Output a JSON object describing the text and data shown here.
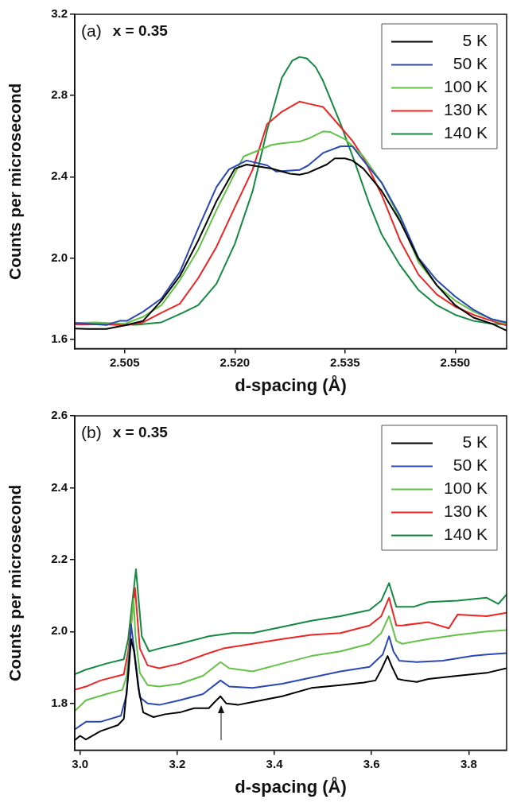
{
  "chart_data": [
    {
      "type": "line",
      "annotations": [
        "(a)",
        "x = 0.35"
      ],
      "xlabel": "d-spacing (Å)",
      "ylabel": "Counts per microsecond",
      "xlim": [
        2.4982,
        2.557
      ],
      "ylim": [
        1.553,
        3.2
      ],
      "xticks": [
        {
          "value": 2.505,
          "label": "2.505"
        },
        {
          "value": 2.52,
          "label": "2.520"
        },
        {
          "value": 2.535,
          "label": "2.535"
        },
        {
          "value": 2.55,
          "label": "2.550"
        }
      ],
      "yticks": [
        1.6,
        {
          "value": 2,
          "label": "2.0"
        },
        2.4,
        2.8,
        3.2
      ],
      "legend": "top right",
      "series": [
        {
          "name": "5 K",
          "color": "#000000",
          "x": [
            2.4982,
            2.5,
            2.5025,
            2.505,
            2.5075,
            2.51,
            2.5125,
            2.515,
            2.5175,
            2.52,
            2.5216,
            2.525,
            2.5275,
            2.5288,
            2.53,
            2.5325,
            2.5336,
            2.535,
            2.536,
            2.5375,
            2.54,
            2.5425,
            2.545,
            2.5475,
            2.55,
            2.5525,
            2.555,
            2.557
          ],
          "values": [
            1.652,
            1.65,
            1.65,
            1.668,
            1.69,
            1.79,
            1.91,
            2.085,
            2.28,
            2.44,
            2.46,
            2.44,
            2.415,
            2.41,
            2.42,
            2.46,
            2.49,
            2.49,
            2.48,
            2.44,
            2.33,
            2.18,
            1.995,
            1.865,
            1.767,
            1.706,
            1.676,
            1.642
          ]
        },
        {
          "name": "50 K",
          "color": "#2a48b4",
          "x": [
            2.4982,
            2.5025,
            2.5043,
            2.5053,
            2.5075,
            2.51,
            2.5125,
            2.515,
            2.5175,
            2.5192,
            2.5216,
            2.5244,
            2.5256,
            2.5288,
            2.53,
            2.532,
            2.5344,
            2.536,
            2.5375,
            2.54,
            2.5425,
            2.545,
            2.5475,
            2.55,
            2.5525,
            2.555,
            2.557
          ],
          "values": [
            1.68,
            1.67,
            1.69,
            1.69,
            1.735,
            1.8,
            1.93,
            2.145,
            2.35,
            2.436,
            2.48,
            2.456,
            2.426,
            2.433,
            2.456,
            2.517,
            2.55,
            2.55,
            2.48,
            2.37,
            2.206,
            2.0,
            1.89,
            1.81,
            1.745,
            1.698,
            1.683
          ]
        },
        {
          "name": "100 K",
          "color": "#62c245",
          "x": [
            2.4982,
            2.501,
            2.505,
            2.5075,
            2.51,
            2.5125,
            2.515,
            2.5175,
            2.52,
            2.5212,
            2.525,
            2.5264,
            2.5288,
            2.53,
            2.532,
            2.533,
            2.535,
            2.5375,
            2.54,
            2.5425,
            2.545,
            2.5475,
            2.55,
            2.5525,
            2.555,
            2.557
          ],
          "values": [
            1.68,
            1.683,
            1.676,
            1.71,
            1.767,
            1.89,
            2.04,
            2.236,
            2.418,
            2.5,
            2.557,
            2.565,
            2.573,
            2.588,
            2.623,
            2.62,
            2.585,
            2.5,
            2.37,
            2.19,
            1.98,
            1.865,
            1.79,
            1.736,
            1.698,
            1.676
          ]
        },
        {
          "name": "130 K",
          "color": "#ee2424",
          "x": [
            2.4982,
            2.5025,
            2.505,
            2.5075,
            2.51,
            2.5125,
            2.515,
            2.5175,
            2.52,
            2.5224,
            2.5244,
            2.5264,
            2.5288,
            2.53,
            2.532,
            2.5344,
            2.536,
            2.5375,
            2.54,
            2.5425,
            2.545,
            2.5475,
            2.55,
            2.5525,
            2.555,
            2.557
          ],
          "values": [
            1.673,
            1.673,
            1.668,
            1.683,
            1.73,
            1.774,
            1.9,
            2.055,
            2.25,
            2.433,
            2.66,
            2.72,
            2.77,
            2.76,
            2.744,
            2.645,
            2.577,
            2.494,
            2.31,
            2.085,
            1.918,
            1.82,
            1.76,
            1.72,
            1.69,
            1.668
          ]
        },
        {
          "name": "140 K",
          "color": "#138a40",
          "x": [
            2.4982,
            2.5025,
            2.5065,
            2.51,
            2.5129,
            2.515,
            2.5175,
            2.52,
            2.5224,
            2.5244,
            2.5264,
            2.5278,
            2.5288,
            2.5298,
            2.531,
            2.532,
            2.5344,
            2.5364,
            2.5383,
            2.54,
            2.5425,
            2.545,
            2.5475,
            2.55,
            2.5525,
            2.555,
            2.557
          ],
          "values": [
            1.68,
            1.676,
            1.671,
            1.683,
            1.73,
            1.767,
            1.873,
            2.07,
            2.327,
            2.63,
            2.888,
            2.971,
            2.99,
            2.983,
            2.94,
            2.873,
            2.66,
            2.464,
            2.267,
            2.115,
            1.964,
            1.842,
            1.767,
            1.72,
            1.69,
            1.676,
            1.673
          ]
        }
      ]
    },
    {
      "type": "line",
      "annotations": [
        "(b)",
        "x = 0.35"
      ],
      "xlabel": "d-spacing (Å)",
      "ylabel": "Counts per microsecond",
      "xlim": [
        2.989,
        3.878
      ],
      "ylim": [
        1.67,
        2.6
      ],
      "xticks": [
        {
          "value": 3,
          "label": "3.0"
        },
        3.2,
        3.4,
        3.6,
        3.8
      ],
      "yticks": [
        1.8,
        {
          "value": 2,
          "label": "2.0"
        },
        2.2,
        2.4,
        2.6
      ],
      "legend": "top right",
      "series": [
        {
          "name": "5 K",
          "color": "#000000",
          "x": [
            2.989,
            3.0,
            3.012,
            3.042,
            3.078,
            3.09,
            3.099,
            3.105,
            3.111,
            3.12,
            3.13,
            3.151,
            3.175,
            3.205,
            3.235,
            3.265,
            3.277,
            3.289,
            3.301,
            3.325,
            3.355,
            3.416,
            3.476,
            3.536,
            3.584,
            3.608,
            3.62,
            3.633,
            3.642,
            3.654,
            3.669,
            3.693,
            3.717,
            3.777,
            3.837,
            3.878
          ],
          "values": [
            1.698,
            1.71,
            1.7,
            1.723,
            1.74,
            1.757,
            1.877,
            1.979,
            1.945,
            1.843,
            1.775,
            1.762,
            1.77,
            1.775,
            1.787,
            1.787,
            1.804,
            1.82,
            1.8,
            1.796,
            1.804,
            1.82,
            1.843,
            1.851,
            1.858,
            1.864,
            1.894,
            1.932,
            1.902,
            1.868,
            1.864,
            1.86,
            1.868,
            1.877,
            1.885,
            1.898
          ]
        },
        {
          "name": "50 K",
          "color": "#2a48b4",
          "x": [
            2.989,
            3.012,
            3.042,
            3.084,
            3.096,
            3.105,
            3.114,
            3.123,
            3.139,
            3.163,
            3.205,
            3.253,
            3.289,
            3.307,
            3.355,
            3.416,
            3.476,
            3.536,
            3.596,
            3.623,
            3.636,
            3.645,
            3.657,
            3.693,
            3.747,
            3.807,
            3.837,
            3.878
          ],
          "values": [
            1.728,
            1.749,
            1.749,
            1.766,
            1.826,
            2.02,
            1.92,
            1.817,
            1.8,
            1.796,
            1.809,
            1.826,
            1.864,
            1.847,
            1.843,
            1.855,
            1.872,
            1.889,
            1.902,
            1.936,
            1.987,
            1.945,
            1.919,
            1.915,
            1.919,
            1.932,
            1.936,
            1.94
          ]
        },
        {
          "name": "100 K",
          "color": "#62c245",
          "x": [
            2.989,
            3.012,
            3.054,
            3.087,
            3.096,
            3.11,
            3.114,
            3.123,
            3.139,
            3.163,
            3.205,
            3.253,
            3.289,
            3.307,
            3.355,
            3.416,
            3.476,
            3.536,
            3.596,
            3.62,
            3.636,
            3.651,
            3.663,
            3.717,
            3.777,
            3.837,
            3.878
          ],
          "values": [
            1.779,
            1.809,
            1.826,
            1.838,
            1.877,
            2.092,
            1.987,
            1.885,
            1.851,
            1.847,
            1.855,
            1.877,
            1.915,
            1.898,
            1.889,
            1.911,
            1.932,
            1.945,
            1.966,
            1.996,
            2.043,
            1.974,
            1.966,
            1.979,
            1.991,
            2.0,
            2.004
          ]
        },
        {
          "name": "130 K",
          "color": "#ee2424",
          "x": [
            2.989,
            3.012,
            3.042,
            3.09,
            3.099,
            3.113,
            3.123,
            3.139,
            3.163,
            3.205,
            3.265,
            3.295,
            3.355,
            3.416,
            3.476,
            3.536,
            3.596,
            3.62,
            3.636,
            3.651,
            3.663,
            3.717,
            3.759,
            3.777,
            3.837,
            3.878
          ],
          "values": [
            1.838,
            1.847,
            1.864,
            1.881,
            1.945,
            2.122,
            1.953,
            1.906,
            1.898,
            1.911,
            1.94,
            1.953,
            1.966,
            1.979,
            1.991,
            1.996,
            2.017,
            2.043,
            2.094,
            2.017,
            2.017,
            2.026,
            2.009,
            2.047,
            2.043,
            2.052
          ]
        },
        {
          "name": "140 K",
          "color": "#138a40",
          "x": [
            2.989,
            3.012,
            3.054,
            3.09,
            3.099,
            3.115,
            3.127,
            3.142,
            3.163,
            3.205,
            3.265,
            3.313,
            3.355,
            3.416,
            3.476,
            3.536,
            3.596,
            3.62,
            3.636,
            3.651,
            3.687,
            3.717,
            3.777,
            3.837,
            3.861,
            3.878
          ],
          "values": [
            1.881,
            1.894,
            1.911,
            1.923,
            1.979,
            2.173,
            1.987,
            1.945,
            1.953,
            1.966,
            1.987,
            1.996,
            1.996,
            2.013,
            2.03,
            2.043,
            2.06,
            2.086,
            2.135,
            2.069,
            2.069,
            2.082,
            2.086,
            2.094,
            2.077,
            2.103
          ]
        }
      ]
    }
  ]
}
